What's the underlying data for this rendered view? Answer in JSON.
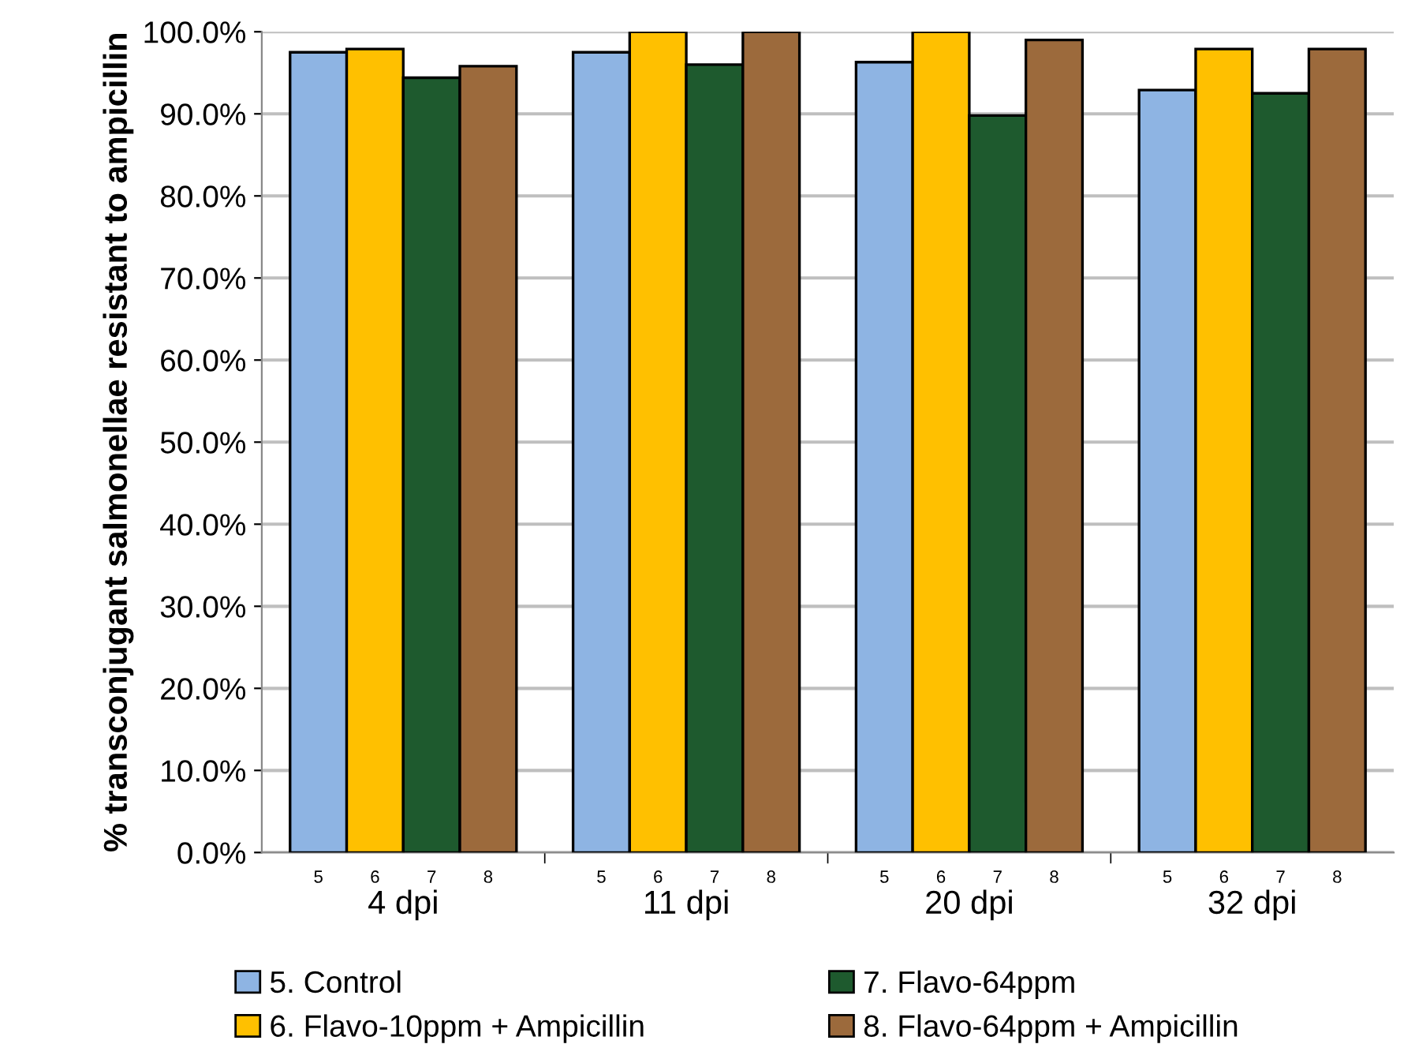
{
  "chart_data": {
    "type": "bar",
    "ylabel": "% transconjugant salmonellae resistant to ampicillin",
    "categories": [
      "4 dpi",
      "11 dpi",
      "20 dpi",
      "32 dpi"
    ],
    "series": [
      {
        "name": "5. Control",
        "color": "#8eb4e3",
        "values": [
          97.5,
          97.5,
          96.3,
          92.9
        ]
      },
      {
        "name": "6. Flavo-10ppm + Ampicillin",
        "color": "#ffc000",
        "values": [
          97.9,
          100,
          100,
          97.9
        ]
      },
      {
        "name": "7. Flavo-64ppm",
        "color": "#1e5a2e",
        "values": [
          94.4,
          96.0,
          89.8,
          92.5
        ]
      },
      {
        "name": "8. Flavo-64ppm + Ampicillin",
        "color": "#9c6a3c",
        "values": [
          95.8,
          100,
          99.0,
          97.9
        ]
      }
    ],
    "annotations": [
      "5",
      "6",
      "7",
      "8",
      "5",
      "6",
      "7",
      "8",
      "5",
      "6",
      "7",
      "8",
      "5",
      "6",
      "7",
      "8"
    ],
    "ylim": [
      0,
      100
    ],
    "yticks": [
      {
        "value": 0,
        "label": "0.0%"
      },
      {
        "value": 10,
        "label": "10.0%"
      },
      {
        "value": 20,
        "label": "20.0%"
      },
      {
        "value": 30,
        "label": "30.0%"
      },
      {
        "value": 40,
        "label": "40.0%"
      },
      {
        "value": 50,
        "label": "50.0%"
      },
      {
        "value": 60,
        "label": "60.0%"
      },
      {
        "value": 70,
        "label": "70.0%"
      },
      {
        "value": 80,
        "label": "80.0%"
      },
      {
        "value": 90,
        "label": "90.0%"
      },
      {
        "value": 100,
        "label": "100.0%"
      }
    ],
    "grid": "y",
    "legend": "bottom"
  }
}
